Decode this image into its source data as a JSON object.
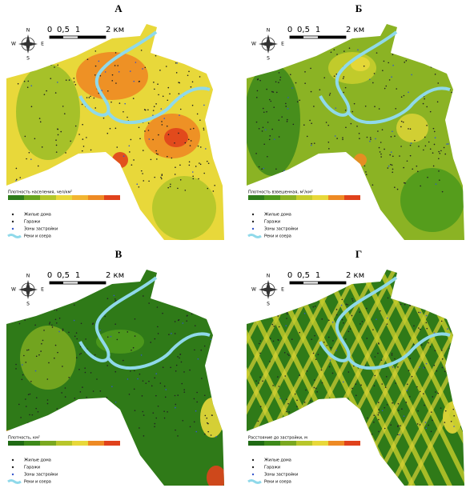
{
  "panels": [
    {
      "label": "А",
      "legend_title": "Плотность населения, чел/км²"
    },
    {
      "label": "Б",
      "legend_title": "Плотность взвешенная, м²/км²"
    },
    {
      "label": "В",
      "legend_title": "Плотность, км²"
    },
    {
      "label": "Г",
      "legend_title": "Расстояние до застройки, м"
    }
  ],
  "scale": [
    "0",
    "0,5",
    "1",
    "2 км"
  ],
  "compass": [
    "N",
    "S",
    "W",
    "E"
  ],
  "legend_items": [
    "Жилые дома",
    "Гаражи",
    "Зоны застройки",
    "Реки и озера"
  ]
}
